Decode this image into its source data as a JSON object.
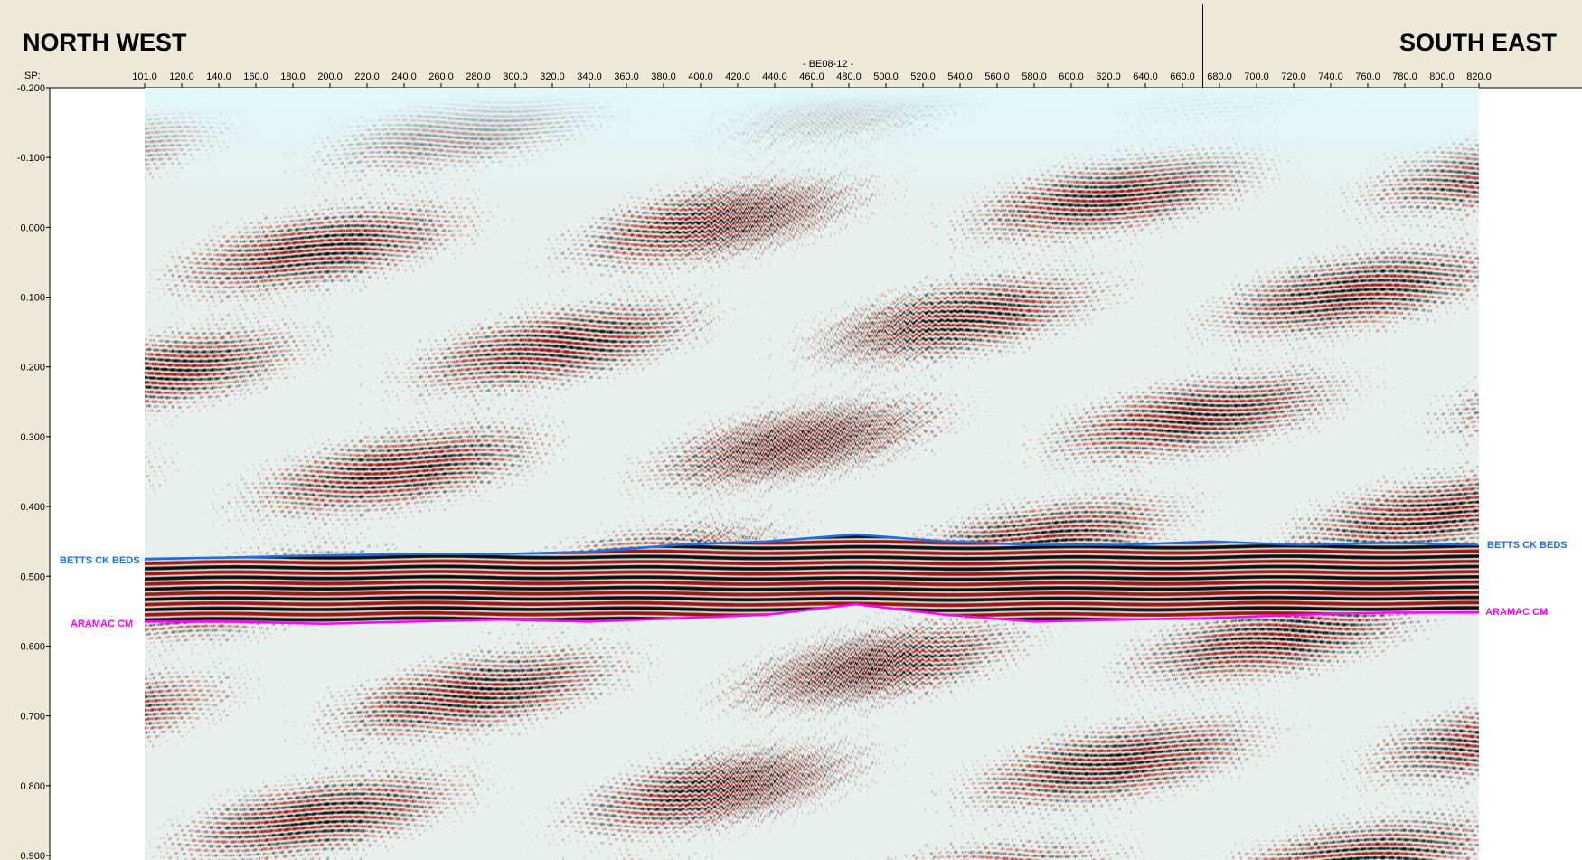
{
  "header": {
    "left_direction": "NORTH WEST",
    "right_direction": "SOUTH EAST",
    "sp_label": "SP:",
    "line_name": "- BE08-12 -"
  },
  "shotpoints": [
    "101.0",
    "120.0",
    "140.0",
    "160.0",
    "180.0",
    "200.0",
    "220.0",
    "240.0",
    "260.0",
    "280.0",
    "300.0",
    "320.0",
    "340.0",
    "360.0",
    "380.0",
    "400.0",
    "420.0",
    "440.0",
    "460.0",
    "480.0",
    "500.0",
    "520.0",
    "540.0",
    "560.0",
    "580.0",
    "600.0",
    "620.0",
    "640.0",
    "660.0",
    "680.0",
    "700.0",
    "720.0",
    "740.0",
    "760.0",
    "780.0",
    "800.0",
    "820.0"
  ],
  "time_axis": [
    "-0.200",
    "-0.100",
    "0.000",
    "0.100",
    "0.200",
    "0.300",
    "0.400",
    "0.500",
    "0.600",
    "0.700",
    "0.800",
    "0.900"
  ],
  "horizons": [
    {
      "name": "BETTS CK BEDS",
      "color": "#1a6fe6",
      "time": [
        0.475,
        0.473,
        0.47,
        0.468,
        0.468,
        0.465,
        0.455,
        0.45,
        0.44,
        0.45,
        0.455,
        0.455,
        0.45,
        0.455,
        0.452,
        0.455
      ]
    },
    {
      "name": "ARAMAC CM",
      "color": "#ff00ff",
      "time": [
        0.565,
        0.565,
        0.568,
        0.565,
        0.562,
        0.565,
        0.56,
        0.555,
        0.54,
        0.555,
        0.565,
        0.562,
        0.56,
        0.555,
        0.552,
        0.552
      ]
    }
  ],
  "colors": {
    "background_panel": "#ece9d8",
    "seismic_positive": "#a01010",
    "seismic_negative": "#000000"
  }
}
